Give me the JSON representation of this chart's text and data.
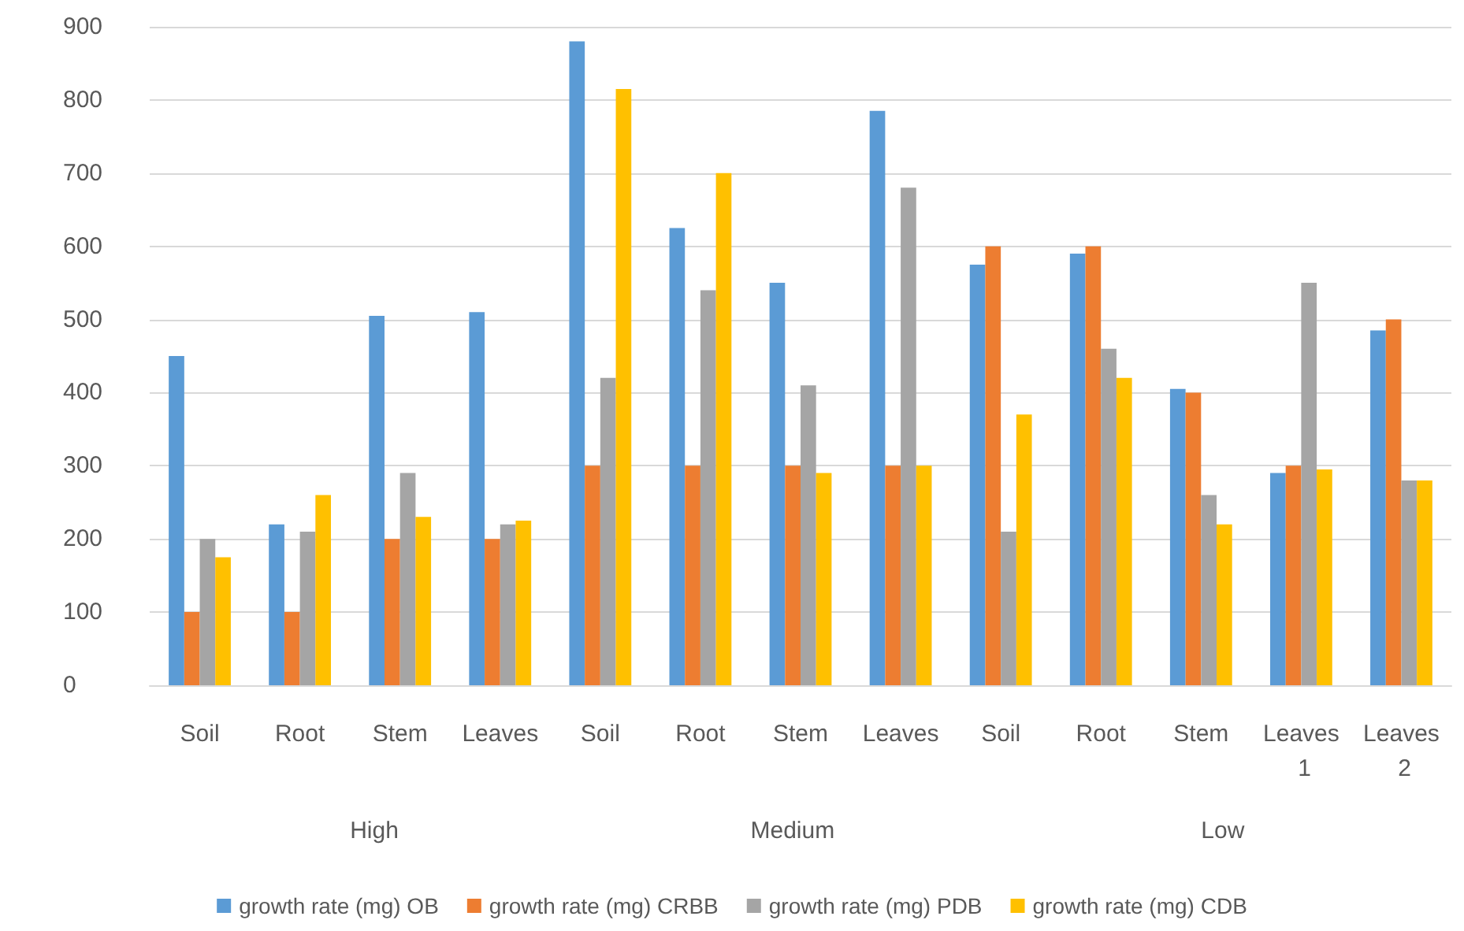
{
  "chart_data": {
    "type": "bar",
    "categories": [
      "Soil",
      "Root",
      "Stem",
      "Leaves",
      "Soil",
      "Root",
      "Stem",
      "Leaves",
      "Soil",
      "Root",
      "Stem",
      "Leaves 1",
      "Leaves 2"
    ],
    "series": [
      {
        "name": "growth rate (mg) OB",
        "color": "#5b9bd5",
        "values": [
          450,
          220,
          505,
          510,
          880,
          625,
          550,
          785,
          575,
          590,
          405,
          290,
          485
        ]
      },
      {
        "name": "growth rate (mg) CRBB",
        "color": "#ed7d31",
        "values": [
          100,
          100,
          200,
          200,
          300,
          300,
          300,
          300,
          600,
          600,
          400,
          300,
          500
        ]
      },
      {
        "name": "growth rate (mg) PDB",
        "color": "#a5a5a5",
        "values": [
          200,
          210,
          290,
          220,
          420,
          540,
          410,
          680,
          210,
          460,
          260,
          550,
          280
        ]
      },
      {
        "name": "growth rate (mg) CDB",
        "color": "#ffc000",
        "values": [
          175,
          260,
          230,
          225,
          815,
          700,
          290,
          300,
          370,
          420,
          220,
          295,
          280
        ]
      }
    ],
    "annotations": [
      "High",
      "Medium",
      "Low"
    ],
    "ylim": [
      0,
      900
    ],
    "yticks": [
      0,
      100,
      200,
      300,
      400,
      500,
      600,
      700,
      800,
      900
    ],
    "grid": "y",
    "legend": "bottom"
  }
}
